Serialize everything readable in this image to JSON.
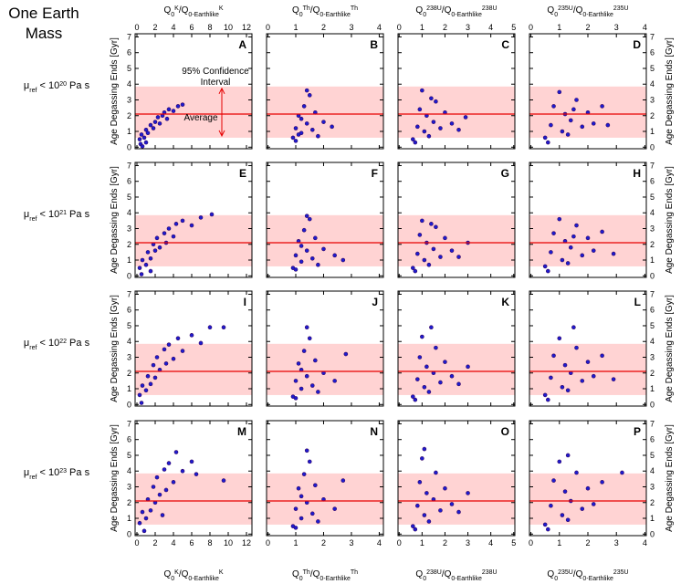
{
  "title_lines": [
    "One Earth",
    "Mass"
  ],
  "ylabel": "Age Degassing Ends [Gyr]",
  "ylim": [
    -0.1,
    7.2
  ],
  "yticks": [
    0,
    1,
    2,
    3,
    4,
    5,
    6,
    7
  ],
  "confidence_band": [
    0.6,
    3.85
  ],
  "average": 2.1,
  "band_color": "#ffd3d3",
  "average_color": "#e60000",
  "point_color": "#1c1ccf",
  "point_edge": "#3a0660",
  "annotations": [
    "95% Confidence",
    "Interval",
    "Average"
  ],
  "columns": [
    {
      "xlim": [
        -0.2,
        12.6
      ],
      "xticks": [
        0,
        2,
        4,
        6,
        8,
        10,
        12
      ],
      "xlabel": [
        {
          "text": "Q"
        },
        {
          "text": "0",
          "pos": "sub"
        },
        {
          "text": "K",
          "pos": "sup"
        },
        {
          "text": "/Q"
        },
        {
          "text": "0-Earthlike",
          "pos": "sub"
        },
        {
          "text": "K",
          "pos": "sup"
        }
      ]
    },
    {
      "xlim": [
        -0.05,
        4.15
      ],
      "xticks": [
        0,
        1,
        2,
        3,
        4
      ],
      "xlabel": [
        {
          "text": "Q"
        },
        {
          "text": "0",
          "pos": "sub"
        },
        {
          "text": "Th",
          "pos": "sup"
        },
        {
          "text": "/Q"
        },
        {
          "text": "0-Earthlike",
          "pos": "sub"
        },
        {
          "text": "Th",
          "pos": "sup"
        }
      ]
    },
    {
      "xlim": [
        -0.05,
        5.05
      ],
      "xticks": [
        0,
        1,
        2,
        3,
        4,
        5
      ],
      "xlabel": [
        {
          "text": "Q"
        },
        {
          "text": "0",
          "pos": "sub"
        },
        {
          "text": "238U",
          "pos": "sup"
        },
        {
          "text": "/Q"
        },
        {
          "text": "0-Earthlike",
          "pos": "sub"
        },
        {
          "text": "238U",
          "pos": "sup"
        }
      ]
    },
    {
      "xlim": [
        -0.05,
        4.05
      ],
      "xticks": [
        0,
        1,
        2,
        3,
        4
      ],
      "xlabel": [
        {
          "text": "Q"
        },
        {
          "text": "0",
          "pos": "sub"
        },
        {
          "text": "235U",
          "pos": "sup"
        },
        {
          "text": "/Q"
        },
        {
          "text": "0-Earthlike",
          "pos": "sub"
        },
        {
          "text": "235U",
          "pos": "sup"
        }
      ]
    }
  ],
  "rows": [
    [
      {
        "text": "μ"
      },
      {
        "text": "ref",
        "pos": "sub"
      },
      {
        "text": " < 10"
      },
      {
        "text": "20",
        "pos": "sup"
      },
      {
        "text": " Pa s"
      }
    ],
    [
      {
        "text": "μ"
      },
      {
        "text": "ref",
        "pos": "sub"
      },
      {
        "text": " < 10"
      },
      {
        "text": "21",
        "pos": "sup"
      },
      {
        "text": " Pa s"
      }
    ],
    [
      {
        "text": "μ"
      },
      {
        "text": "ref",
        "pos": "sub"
      },
      {
        "text": " < 10"
      },
      {
        "text": "22",
        "pos": "sup"
      },
      {
        "text": " Pa s"
      }
    ],
    [
      {
        "text": "μ"
      },
      {
        "text": "ref",
        "pos": "sub"
      },
      {
        "text": " < 10"
      },
      {
        "text": "23",
        "pos": "sup"
      },
      {
        "text": " Pa s"
      }
    ]
  ],
  "chart_data": [
    {
      "type": "scatter",
      "panel_label": "A",
      "x": [
        0.3,
        0.5,
        0.8,
        1,
        1.2,
        1.5,
        1.8,
        2,
        2.3,
        2.5,
        2.8,
        3,
        3.3,
        3.5,
        4,
        4.5,
        5,
        0.4,
        1,
        0.6
      ],
      "y": [
        0.5,
        0.8,
        0.6,
        1.1,
        0.9,
        1.4,
        1.2,
        1.6,
        1.9,
        1.5,
        2,
        2.2,
        1.8,
        2.4,
        2.3,
        2.6,
        2.7,
        0.2,
        0.3,
        0.05
      ]
    },
    {
      "type": "scatter",
      "panel_label": "B",
      "x": [
        0.9,
        1,
        1.1,
        1.2,
        1.3,
        1.4,
        1.5,
        1.6,
        1.7,
        1.8,
        1,
        1.2,
        1.4,
        2,
        2.3,
        1.1
      ],
      "y": [
        0.6,
        1.2,
        2,
        0.9,
        2.6,
        1.5,
        3.3,
        1.1,
        2.2,
        0.7,
        0.4,
        1.8,
        3.6,
        1.6,
        1.3,
        0.8
      ]
    },
    {
      "type": "scatter",
      "panel_label": "C",
      "x": [
        0.6,
        0.8,
        0.9,
        1,
        1.1,
        1.2,
        1.3,
        1.5,
        1.6,
        1.8,
        2,
        2.3,
        2.6,
        2.9,
        0.7,
        1.4
      ],
      "y": [
        0.5,
        1.3,
        2.4,
        3.6,
        1,
        2,
        0.7,
        1.6,
        2.9,
        1.2,
        2.2,
        1.5,
        1.1,
        1.9,
        0.3,
        3.1
      ]
    },
    {
      "type": "scatter",
      "panel_label": "D",
      "x": [
        0.5,
        0.7,
        0.8,
        1,
        1.1,
        1.2,
        1.3,
        1.4,
        1.6,
        1.8,
        2,
        2.2,
        2.5,
        2.7,
        0.6,
        1.5
      ],
      "y": [
        0.6,
        1.4,
        2.6,
        3.5,
        1,
        2.1,
        0.8,
        1.7,
        3,
        1.3,
        2.2,
        1.5,
        2.6,
        1.4,
        0.3,
        2.4
      ]
    },
    {
      "type": "scatter",
      "panel_label": "E",
      "x": [
        0.3,
        0.6,
        1,
        1.2,
        1.5,
        1.8,
        2,
        2.2,
        2.5,
        3,
        3.2,
        3.5,
        4,
        4.3,
        5,
        6,
        7,
        8.2,
        0.5,
        1.5
      ],
      "y": [
        0.5,
        1,
        0.7,
        1.5,
        1.1,
        2,
        1.6,
        2.4,
        1.8,
        2.7,
        2.1,
        3,
        2.5,
        3.3,
        3.5,
        3.2,
        3.7,
        3.9,
        0.1,
        0.3
      ]
    },
    {
      "type": "scatter",
      "panel_label": "F",
      "x": [
        0.9,
        1,
        1.1,
        1.2,
        1.3,
        1.4,
        1.5,
        1.6,
        1.7,
        1.8,
        1,
        1.2,
        1.4,
        2,
        2.4,
        2.7
      ],
      "y": [
        0.5,
        1.3,
        2.2,
        0.9,
        2.9,
        1.6,
        3.6,
        1.1,
        2.4,
        0.7,
        0.4,
        1.9,
        3.8,
        1.7,
        1.3,
        1
      ]
    },
    {
      "type": "scatter",
      "panel_label": "G",
      "x": [
        0.6,
        0.8,
        0.9,
        1,
        1.1,
        1.2,
        1.3,
        1.5,
        1.6,
        1.8,
        2,
        2.3,
        2.6,
        3,
        0.7,
        1.4
      ],
      "y": [
        0.5,
        1.4,
        2.6,
        3.5,
        1,
        2.1,
        0.7,
        1.7,
        3.1,
        1.2,
        2.4,
        1.6,
        1.2,
        2.1,
        0.3,
        3.3
      ]
    },
    {
      "type": "scatter",
      "panel_label": "H",
      "x": [
        0.5,
        0.7,
        0.8,
        1,
        1.1,
        1.2,
        1.3,
        1.4,
        1.6,
        1.8,
        2,
        2.2,
        2.5,
        2.9,
        0.6,
        1.5
      ],
      "y": [
        0.6,
        1.5,
        2.7,
        3.6,
        1,
        2.2,
        0.8,
        1.8,
        3.2,
        1.3,
        2.4,
        1.6,
        2.8,
        1.4,
        0.3,
        2.5
      ]
    },
    {
      "type": "scatter",
      "panel_label": "I",
      "x": [
        0.3,
        0.6,
        1,
        1.2,
        1.5,
        1.8,
        2,
        2.2,
        2.5,
        3,
        3.2,
        3.5,
        4,
        4.5,
        5,
        6,
        7,
        8,
        9.5,
        0.5
      ],
      "y": [
        0.6,
        1.2,
        0.9,
        1.8,
        1.3,
        2.5,
        1.7,
        3,
        2.2,
        3.5,
        2.6,
        3.8,
        2.9,
        4.2,
        3.4,
        4.4,
        3.9,
        4.9,
        4.9,
        0.1
      ]
    },
    {
      "type": "scatter",
      "panel_label": "J",
      "x": [
        0.9,
        1,
        1.1,
        1.2,
        1.3,
        1.4,
        1.5,
        1.6,
        1.7,
        1.8,
        1,
        1.2,
        1.4,
        2,
        2.4,
        2.8
      ],
      "y": [
        0.5,
        1.5,
        2.6,
        1,
        3.4,
        1.8,
        4.2,
        1.2,
        2.8,
        0.8,
        0.4,
        2.2,
        4.9,
        2,
        1.5,
        3.2
      ]
    },
    {
      "type": "scatter",
      "panel_label": "K",
      "x": [
        0.6,
        0.8,
        0.9,
        1,
        1.1,
        1.2,
        1.3,
        1.5,
        1.6,
        1.8,
        2,
        2.3,
        2.6,
        3,
        0.7,
        1.4
      ],
      "y": [
        0.5,
        1.6,
        3,
        4.3,
        1.1,
        2.4,
        0.8,
        2,
        3.6,
        1.4,
        2.7,
        1.8,
        1.3,
        2.4,
        0.3,
        4.9
      ]
    },
    {
      "type": "scatter",
      "panel_label": "L",
      "x": [
        0.5,
        0.7,
        0.8,
        1,
        1.1,
        1.2,
        1.3,
        1.4,
        1.6,
        1.8,
        2,
        2.2,
        2.5,
        2.9,
        0.6,
        1.5
      ],
      "y": [
        0.6,
        1.7,
        3.1,
        4.2,
        1.1,
        2.5,
        0.9,
        2,
        3.6,
        1.5,
        2.7,
        1.8,
        3.1,
        1.6,
        0.3,
        4.9
      ]
    },
    {
      "type": "scatter",
      "panel_label": "M",
      "x": [
        0.3,
        0.6,
        1,
        1.2,
        1.5,
        1.8,
        2,
        2.2,
        2.5,
        3,
        3.2,
        3.5,
        4,
        4.3,
        5,
        6,
        6.5,
        9.5,
        0.8,
        2.8
      ],
      "y": [
        0.7,
        1.4,
        1,
        2.2,
        1.5,
        3,
        2,
        3.6,
        2.5,
        4.1,
        2.8,
        4.5,
        3.3,
        5.2,
        4,
        4.6,
        3.8,
        3.4,
        0.2,
        1.2
      ]
    },
    {
      "type": "scatter",
      "panel_label": "N",
      "x": [
        0.9,
        1,
        1.1,
        1.2,
        1.3,
        1.4,
        1.5,
        1.6,
        1.7,
        1.8,
        1,
        1.2,
        1.4,
        2,
        2.4,
        2.7
      ],
      "y": [
        0.5,
        1.6,
        2.9,
        1,
        3.8,
        2,
        4.6,
        1.3,
        3.1,
        0.8,
        0.4,
        2.4,
        5.3,
        2.2,
        1.6,
        3.4
      ]
    },
    {
      "type": "scatter",
      "panel_label": "O",
      "x": [
        0.6,
        0.8,
        0.9,
        1,
        1.1,
        1.2,
        1.3,
        1.5,
        1.6,
        1.8,
        2,
        2.3,
        2.6,
        3,
        0.7,
        1.1
      ],
      "y": [
        0.5,
        1.8,
        3.3,
        4.8,
        1.2,
        2.6,
        0.8,
        2.2,
        3.9,
        1.5,
        2.9,
        1.9,
        1.4,
        2.6,
        0.3,
        5.4
      ]
    },
    {
      "type": "scatter",
      "panel_label": "P",
      "x": [
        0.5,
        0.7,
        0.8,
        1,
        1.1,
        1.2,
        1.3,
        1.4,
        1.6,
        1.8,
        2,
        2.2,
        2.5,
        3.2,
        0.6,
        1.3
      ],
      "y": [
        0.6,
        1.8,
        3.4,
        4.6,
        1.2,
        2.7,
        0.9,
        2.1,
        3.9,
        1.6,
        2.9,
        1.9,
        3.3,
        3.9,
        0.3,
        5
      ]
    }
  ]
}
